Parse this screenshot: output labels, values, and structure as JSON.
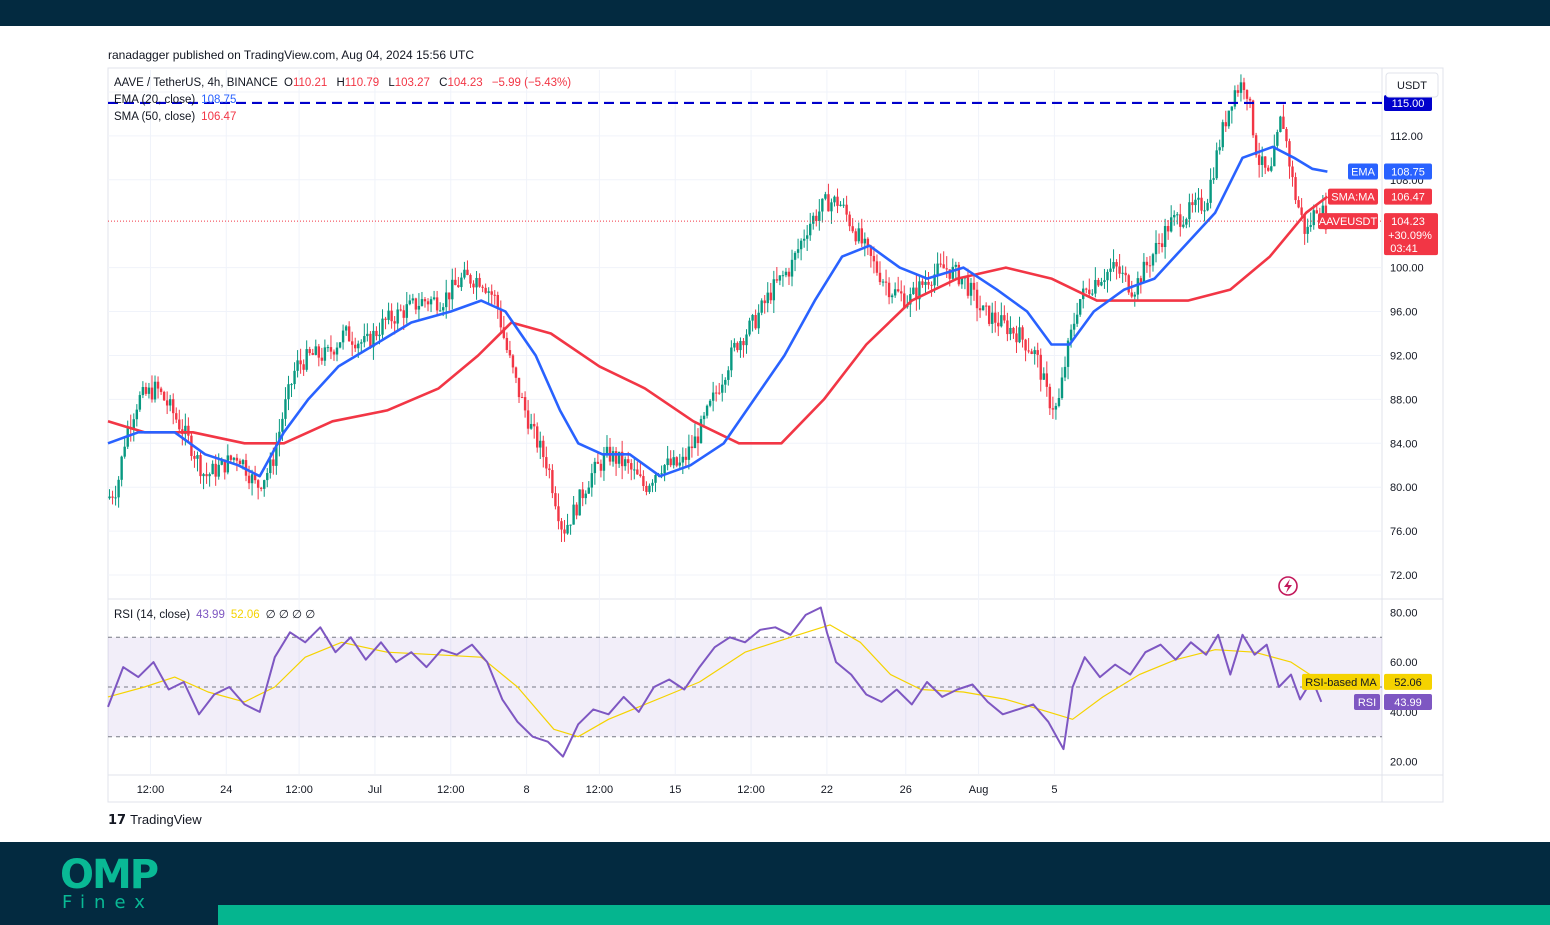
{
  "publisher": "ranadagger published on TradingView.com, Aug 04, 2024 15:56 UTC",
  "brand": {
    "name": "OMP",
    "sub": "Finex"
  },
  "footer_logo": "TradingView",
  "chart_data": {
    "type": "candlestick",
    "symbol": "AAVE / TetherUS, 4h, BINANCE",
    "ohlc": {
      "o_label": "O",
      "o": "110.21",
      "h_label": "H",
      "h": "110.79",
      "l_label": "L",
      "l": "103.27",
      "c_label": "C",
      "c": "104.23",
      "change": "−5.99 (−5.43%)"
    },
    "indicators": [
      {
        "name": "EMA (20, close)",
        "value": "108.75",
        "color": "#2962ff"
      },
      {
        "name": "SMA (50, close)",
        "value": "106.47",
        "color": "#f23645"
      }
    ],
    "currency": "USDT",
    "ylim": [
      70,
      118
    ],
    "y_ticks": [
      "116.00",
      "112.00",
      "108.00",
      "100.00",
      "96.00",
      "92.00",
      "88.00",
      "84.00",
      "80.00",
      "76.00",
      "72.00"
    ],
    "x_ticks": [
      "12:00",
      "24",
      "12:00",
      "Jul",
      "12:00",
      "8",
      "12:00",
      "15",
      "12:00",
      "22",
      "26",
      "Aug",
      "5"
    ],
    "horizontal_line": {
      "value": 115.0,
      "label": "115.00",
      "color": "#0000cc"
    },
    "price_labels": [
      {
        "name": "EMA",
        "value": "108.75",
        "color": "#2962ff"
      },
      {
        "name": "SMA:MA",
        "value": "106.47",
        "color": "#f23645"
      },
      {
        "name": "AAVEUSDT",
        "value": "104.23",
        "extra": [
          "+30.09%",
          "03:41"
        ],
        "color": "#f23645"
      }
    ],
    "price_path": [
      {
        "t": 0,
        "v": 79
      },
      {
        "t": 3,
        "v": 80
      },
      {
        "t": 6,
        "v": 85
      },
      {
        "t": 10,
        "v": 88
      },
      {
        "t": 16,
        "v": 89
      },
      {
        "t": 21,
        "v": 87
      },
      {
        "t": 27,
        "v": 84
      },
      {
        "t": 32,
        "v": 81
      },
      {
        "t": 38,
        "v": 82
      },
      {
        "t": 43,
        "v": 83
      },
      {
        "t": 49,
        "v": 80
      },
      {
        "t": 54,
        "v": 82
      },
      {
        "t": 58,
        "v": 87
      },
      {
        "t": 62,
        "v": 91
      },
      {
        "t": 67,
        "v": 92
      },
      {
        "t": 72,
        "v": 92
      },
      {
        "t": 78,
        "v": 94
      },
      {
        "t": 85,
        "v": 93
      },
      {
        "t": 91,
        "v": 95
      },
      {
        "t": 97,
        "v": 96
      },
      {
        "t": 104,
        "v": 97
      },
      {
        "t": 110,
        "v": 97
      },
      {
        "t": 117,
        "v": 99
      },
      {
        "t": 123,
        "v": 99
      },
      {
        "t": 128,
        "v": 97
      },
      {
        "t": 131,
        "v": 93
      },
      {
        "t": 135,
        "v": 89
      },
      {
        "t": 140,
        "v": 85
      },
      {
        "t": 145,
        "v": 82
      },
      {
        "t": 150,
        "v": 76
      },
      {
        "t": 154,
        "v": 78
      },
      {
        "t": 159,
        "v": 81
      },
      {
        "t": 165,
        "v": 83
      },
      {
        "t": 171,
        "v": 82
      },
      {
        "t": 177,
        "v": 80
      },
      {
        "t": 182,
        "v": 82
      },
      {
        "t": 189,
        "v": 82
      },
      {
        "t": 195,
        "v": 85
      },
      {
        "t": 201,
        "v": 89
      },
      {
        "t": 207,
        "v": 93
      },
      {
        "t": 213,
        "v": 95
      },
      {
        "t": 219,
        "v": 98
      },
      {
        "t": 225,
        "v": 100
      },
      {
        "t": 231,
        "v": 104
      },
      {
        "t": 237,
        "v": 106
      },
      {
        "t": 241,
        "v": 106
      },
      {
        "t": 245,
        "v": 104
      },
      {
        "t": 249,
        "v": 102
      },
      {
        "t": 253,
        "v": 100
      },
      {
        "t": 258,
        "v": 98
      },
      {
        "t": 264,
        "v": 97
      },
      {
        "t": 270,
        "v": 99
      },
      {
        "t": 276,
        "v": 100
      },
      {
        "t": 282,
        "v": 99
      },
      {
        "t": 288,
        "v": 96
      },
      {
        "t": 294,
        "v": 95
      },
      {
        "t": 300,
        "v": 94
      },
      {
        "t": 306,
        "v": 92
      },
      {
        "t": 310,
        "v": 88
      },
      {
        "t": 313,
        "v": 87
      },
      {
        "t": 316,
        "v": 92
      },
      {
        "t": 320,
        "v": 97
      },
      {
        "t": 326,
        "v": 99
      },
      {
        "t": 332,
        "v": 100
      },
      {
        "t": 338,
        "v": 98
      },
      {
        "t": 344,
        "v": 101
      },
      {
        "t": 350,
        "v": 104
      },
      {
        "t": 356,
        "v": 105
      },
      {
        "t": 362,
        "v": 106
      },
      {
        "t": 367,
        "v": 112
      },
      {
        "t": 371,
        "v": 116
      },
      {
        "t": 375,
        "v": 117
      },
      {
        "t": 379,
        "v": 110
      },
      {
        "t": 383,
        "v": 108
      },
      {
        "t": 387,
        "v": 114
      },
      {
        "t": 391,
        "v": 107
      },
      {
        "t": 395,
        "v": 103
      },
      {
        "t": 399,
        "v": 106
      },
      {
        "t": 402,
        "v": 104
      }
    ],
    "ema_path": [
      {
        "t": 0,
        "v": 84
      },
      {
        "t": 10,
        "v": 85
      },
      {
        "t": 22,
        "v": 85
      },
      {
        "t": 32,
        "v": 83
      },
      {
        "t": 43,
        "v": 82
      },
      {
        "t": 50,
        "v": 81
      },
      {
        "t": 58,
        "v": 85
      },
      {
        "t": 66,
        "v": 88
      },
      {
        "t": 76,
        "v": 91
      },
      {
        "t": 88,
        "v": 93
      },
      {
        "t": 100,
        "v": 95
      },
      {
        "t": 113,
        "v": 96
      },
      {
        "t": 123,
        "v": 97
      },
      {
        "t": 131,
        "v": 96
      },
      {
        "t": 141,
        "v": 92
      },
      {
        "t": 149,
        "v": 87
      },
      {
        "t": 155,
        "v": 84
      },
      {
        "t": 163,
        "v": 83
      },
      {
        "t": 172,
        "v": 83
      },
      {
        "t": 182,
        "v": 81
      },
      {
        "t": 192,
        "v": 82
      },
      {
        "t": 203,
        "v": 84
      },
      {
        "t": 213,
        "v": 88
      },
      {
        "t": 223,
        "v": 92
      },
      {
        "t": 233,
        "v": 97
      },
      {
        "t": 242,
        "v": 101
      },
      {
        "t": 251,
        "v": 102
      },
      {
        "t": 261,
        "v": 100
      },
      {
        "t": 270,
        "v": 99
      },
      {
        "t": 282,
        "v": 100
      },
      {
        "t": 293,
        "v": 98
      },
      {
        "t": 303,
        "v": 96
      },
      {
        "t": 311,
        "v": 93
      },
      {
        "t": 317,
        "v": 93
      },
      {
        "t": 325,
        "v": 96
      },
      {
        "t": 335,
        "v": 98
      },
      {
        "t": 345,
        "v": 99
      },
      {
        "t": 355,
        "v": 102
      },
      {
        "t": 365,
        "v": 105
      },
      {
        "t": 374,
        "v": 110
      },
      {
        "t": 384,
        "v": 111
      },
      {
        "t": 391,
        "v": 110
      },
      {
        "t": 397,
        "v": 109
      },
      {
        "t": 402,
        "v": 108.75
      }
    ],
    "sma_path": [
      {
        "t": 0,
        "v": 86
      },
      {
        "t": 12,
        "v": 85
      },
      {
        "t": 28,
        "v": 85
      },
      {
        "t": 45,
        "v": 84
      },
      {
        "t": 58,
        "v": 84
      },
      {
        "t": 74,
        "v": 86
      },
      {
        "t": 92,
        "v": 87
      },
      {
        "t": 109,
        "v": 89
      },
      {
        "t": 122,
        "v": 92
      },
      {
        "t": 133,
        "v": 95
      },
      {
        "t": 146,
        "v": 94
      },
      {
        "t": 162,
        "v": 91
      },
      {
        "t": 177,
        "v": 89
      },
      {
        "t": 193,
        "v": 86
      },
      {
        "t": 208,
        "v": 84
      },
      {
        "t": 222,
        "v": 84
      },
      {
        "t": 236,
        "v": 88
      },
      {
        "t": 250,
        "v": 93
      },
      {
        "t": 265,
        "v": 97
      },
      {
        "t": 280,
        "v": 99
      },
      {
        "t": 296,
        "v": 100
      },
      {
        "t": 311,
        "v": 99
      },
      {
        "t": 326,
        "v": 97
      },
      {
        "t": 341,
        "v": 97
      },
      {
        "t": 356,
        "v": 97
      },
      {
        "t": 370,
        "v": 98
      },
      {
        "t": 383,
        "v": 101
      },
      {
        "t": 395,
        "v": 105
      },
      {
        "t": 402,
        "v": 106.47
      }
    ],
    "rsi": {
      "label": "RSI (14, close)",
      "value": "43.99",
      "ma_value": "52.06",
      "placeholders": "∅ ∅ ∅ ∅",
      "ma_label": "RSI-based MA",
      "rsi_label": "RSI",
      "ylim": [
        15,
        85
      ],
      "y_ticks": [
        "80.00",
        "60.00",
        "40.00",
        "20.00"
      ],
      "bands": [
        70,
        50,
        30
      ],
      "rsi_path": [
        {
          "t": 0,
          "v": 42
        },
        {
          "t": 5,
          "v": 58
        },
        {
          "t": 10,
          "v": 54
        },
        {
          "t": 15,
          "v": 60
        },
        {
          "t": 20,
          "v": 49
        },
        {
          "t": 25,
          "v": 52
        },
        {
          "t": 30,
          "v": 39
        },
        {
          "t": 35,
          "v": 47
        },
        {
          "t": 40,
          "v": 50
        },
        {
          "t": 45,
          "v": 43
        },
        {
          "t": 50,
          "v": 40
        },
        {
          "t": 55,
          "v": 62
        },
        {
          "t": 60,
          "v": 72
        },
        {
          "t": 65,
          "v": 68
        },
        {
          "t": 70,
          "v": 74
        },
        {
          "t": 75,
          "v": 64
        },
        {
          "t": 80,
          "v": 70
        },
        {
          "t": 85,
          "v": 61
        },
        {
          "t": 90,
          "v": 68
        },
        {
          "t": 95,
          "v": 60
        },
        {
          "t": 100,
          "v": 64
        },
        {
          "t": 105,
          "v": 58
        },
        {
          "t": 110,
          "v": 65
        },
        {
          "t": 115,
          "v": 63
        },
        {
          "t": 120,
          "v": 67
        },
        {
          "t": 125,
          "v": 60
        },
        {
          "t": 130,
          "v": 45
        },
        {
          "t": 135,
          "v": 36
        },
        {
          "t": 140,
          "v": 30
        },
        {
          "t": 145,
          "v": 28
        },
        {
          "t": 150,
          "v": 22
        },
        {
          "t": 155,
          "v": 35
        },
        {
          "t": 160,
          "v": 41
        },
        {
          "t": 165,
          "v": 39
        },
        {
          "t": 170,
          "v": 46
        },
        {
          "t": 175,
          "v": 40
        },
        {
          "t": 180,
          "v": 50
        },
        {
          "t": 185,
          "v": 53
        },
        {
          "t": 190,
          "v": 49
        },
        {
          "t": 195,
          "v": 58
        },
        {
          "t": 200,
          "v": 66
        },
        {
          "t": 205,
          "v": 70
        },
        {
          "t": 210,
          "v": 68
        },
        {
          "t": 215,
          "v": 73
        },
        {
          "t": 220,
          "v": 74
        },
        {
          "t": 225,
          "v": 71
        },
        {
          "t": 230,
          "v": 79
        },
        {
          "t": 235,
          "v": 82
        },
        {
          "t": 237,
          "v": 72
        },
        {
          "t": 240,
          "v": 60
        },
        {
          "t": 245,
          "v": 55
        },
        {
          "t": 250,
          "v": 47
        },
        {
          "t": 255,
          "v": 44
        },
        {
          "t": 260,
          "v": 49
        },
        {
          "t": 265,
          "v": 43
        },
        {
          "t": 270,
          "v": 52
        },
        {
          "t": 275,
          "v": 46
        },
        {
          "t": 280,
          "v": 49
        },
        {
          "t": 285,
          "v": 51
        },
        {
          "t": 290,
          "v": 44
        },
        {
          "t": 295,
          "v": 39
        },
        {
          "t": 300,
          "v": 41
        },
        {
          "t": 305,
          "v": 43
        },
        {
          "t": 310,
          "v": 36
        },
        {
          "t": 315,
          "v": 25
        },
        {
          "t": 318,
          "v": 50
        },
        {
          "t": 322,
          "v": 62
        },
        {
          "t": 327,
          "v": 54
        },
        {
          "t": 332,
          "v": 59
        },
        {
          "t": 337,
          "v": 55
        },
        {
          "t": 342,
          "v": 64
        },
        {
          "t": 347,
          "v": 67
        },
        {
          "t": 352,
          "v": 61
        },
        {
          "t": 357,
          "v": 68
        },
        {
          "t": 362,
          "v": 63
        },
        {
          "t": 366,
          "v": 71
        },
        {
          "t": 370,
          "v": 55
        },
        {
          "t": 374,
          "v": 71
        },
        {
          "t": 378,
          "v": 63
        },
        {
          "t": 382,
          "v": 67
        },
        {
          "t": 386,
          "v": 50
        },
        {
          "t": 390,
          "v": 55
        },
        {
          "t": 393,
          "v": 45
        },
        {
          "t": 397,
          "v": 53
        },
        {
          "t": 400,
          "v": 44
        }
      ],
      "ma_path": [
        {
          "t": 0,
          "v": 46
        },
        {
          "t": 12,
          "v": 50
        },
        {
          "t": 22,
          "v": 54
        },
        {
          "t": 33,
          "v": 48
        },
        {
          "t": 45,
          "v": 44
        },
        {
          "t": 55,
          "v": 50
        },
        {
          "t": 65,
          "v": 62
        },
        {
          "t": 77,
          "v": 68
        },
        {
          "t": 92,
          "v": 64
        },
        {
          "t": 108,
          "v": 63
        },
        {
          "t": 123,
          "v": 62
        },
        {
          "t": 135,
          "v": 50
        },
        {
          "t": 147,
          "v": 33
        },
        {
          "t": 155,
          "v": 30
        },
        {
          "t": 165,
          "v": 37
        },
        {
          "t": 175,
          "v": 42
        },
        {
          "t": 185,
          "v": 47
        },
        {
          "t": 195,
          "v": 52
        },
        {
          "t": 210,
          "v": 64
        },
        {
          "t": 225,
          "v": 70
        },
        {
          "t": 238,
          "v": 75
        },
        {
          "t": 248,
          "v": 68
        },
        {
          "t": 258,
          "v": 55
        },
        {
          "t": 268,
          "v": 49
        },
        {
          "t": 282,
          "v": 48
        },
        {
          "t": 296,
          "v": 45
        },
        {
          "t": 310,
          "v": 40
        },
        {
          "t": 318,
          "v": 37
        },
        {
          "t": 328,
          "v": 46
        },
        {
          "t": 340,
          "v": 55
        },
        {
          "t": 352,
          "v": 61
        },
        {
          "t": 365,
          "v": 65
        },
        {
          "t": 378,
          "v": 64
        },
        {
          "t": 390,
          "v": 60
        },
        {
          "t": 400,
          "v": 52
        }
      ]
    }
  }
}
